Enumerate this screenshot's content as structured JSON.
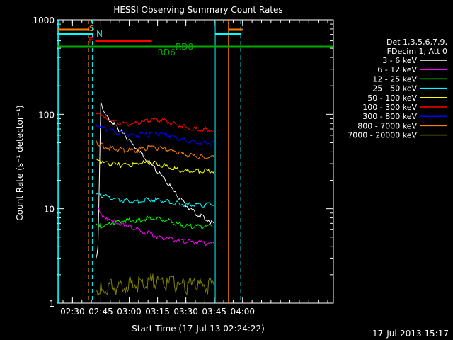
{
  "chart_data": {
    "type": "line",
    "title": "HESSI Observing Summary Count Rates",
    "xlabel": "Start Time (17-Jul-13 02:24:22)",
    "ylabel": "Count Rate (s⁻¹ detector⁻¹)",
    "yscale": "log",
    "xlim_min": [
      22,
      168
    ],
    "ylim": [
      1,
      1000
    ],
    "xticks": [
      {
        "min": 30,
        "label": "02:30"
      },
      {
        "min": 45,
        "label": "02:45"
      },
      {
        "min": 60,
        "label": "03:00"
      },
      {
        "min": 75,
        "label": "03:15"
      },
      {
        "min": 90,
        "label": "03:30"
      },
      {
        "min": 105,
        "label": "03:45"
      },
      {
        "min": 120,
        "label": "04:00"
      }
    ],
    "yticks": [
      {
        "value": 1,
        "label": "1"
      },
      {
        "value": 10,
        "label": "10"
      },
      {
        "value": 100,
        "label": "100"
      },
      {
        "value": 1000,
        "label": "1000"
      }
    ],
    "legend_header": [
      "Det 1,3,5,6,7,9,",
      "FDecim 1, Att 0"
    ],
    "series": [
      {
        "name": "3 - 6 keV",
        "color": "#ffffff",
        "x": [
          42.5,
          43.5,
          45,
          48,
          52,
          56,
          60,
          64,
          70,
          75,
          80,
          85,
          90,
          95,
          100,
          105
        ],
        "y": [
          3,
          4,
          130,
          95,
          78,
          65,
          52,
          42,
          32,
          25,
          19,
          14,
          11,
          9,
          8,
          7
        ]
      },
      {
        "name": "6 - 12 keV",
        "color": "#ff00ff",
        "x": [
          43.5,
          45,
          48,
          52,
          56,
          60,
          64,
          70,
          75,
          80,
          85,
          90,
          95,
          100,
          105
        ],
        "y": [
          11,
          9,
          8,
          7.5,
          7,
          6.5,
          6,
          5.5,
          5,
          4.8,
          4.6,
          4.5,
          4.4,
          4.3,
          4.2
        ]
      },
      {
        "name": "12 - 25 keV",
        "color": "#00ff00",
        "x": [
          42.5,
          45,
          50,
          55,
          60,
          65,
          70,
          75,
          80,
          85,
          90,
          95,
          100,
          105
        ],
        "y": [
          7,
          6.5,
          7,
          7.5,
          7.5,
          7.5,
          8,
          8,
          7.5,
          7,
          6.5,
          6.5,
          6.5,
          6.5
        ]
      },
      {
        "name": "25 - 50 keV",
        "color": "#00ffff",
        "x": [
          42.5,
          45,
          50,
          55,
          60,
          65,
          70,
          75,
          80,
          85,
          90,
          95,
          100,
          105
        ],
        "y": [
          15,
          14,
          13,
          12.5,
          12,
          12,
          12.5,
          12.5,
          12,
          11.5,
          11,
          11,
          11,
          11
        ]
      },
      {
        "name": "50 - 100 keV",
        "color": "#ffff00",
        "x": [
          42.5,
          45,
          50,
          55,
          60,
          65,
          70,
          75,
          80,
          85,
          90,
          95,
          100,
          105
        ],
        "y": [
          33,
          31,
          30,
          29,
          29,
          30,
          31,
          30,
          28,
          26,
          25,
          25,
          25,
          25
        ]
      },
      {
        "name": "100 - 300 keV",
        "color": "#ff0000",
        "x": [
          42.5,
          45,
          50,
          55,
          60,
          65,
          70,
          75,
          80,
          85,
          90,
          95,
          100,
          105
        ],
        "y": [
          100,
          95,
          85,
          80,
          78,
          80,
          86,
          88,
          84,
          78,
          73,
          70,
          69,
          68
        ]
      },
      {
        "name": "300 - 800 keV",
        "color": "#0000ff",
        "x": [
          42.5,
          45,
          50,
          55,
          60,
          65,
          70,
          75,
          80,
          85,
          90,
          95,
          100,
          105
        ],
        "y": [
          75,
          72,
          68,
          63,
          60,
          60,
          62,
          62,
          60,
          56,
          53,
          51,
          50,
          49
        ]
      },
      {
        "name": "800 - 7000 keV",
        "color": "#ff8000",
        "x": [
          42.5,
          45,
          50,
          55,
          60,
          65,
          70,
          75,
          80,
          85,
          90,
          95,
          100,
          105
        ],
        "y": [
          50,
          47,
          44,
          42,
          41,
          42,
          44,
          44,
          42,
          39,
          37,
          36,
          35,
          35
        ]
      },
      {
        "name": "7000 - 20000 keV",
        "color": "#808000",
        "x": [
          42.5,
          45,
          50,
          55,
          60,
          65,
          70,
          75,
          80,
          85,
          90,
          95,
          100,
          105
        ],
        "y": [
          1.5,
          1.4,
          1.5,
          1.5,
          1.6,
          1.6,
          1.7,
          1.7,
          1.6,
          1.6,
          1.5,
          1.5,
          1.5,
          1.5
        ]
      }
    ],
    "annotations": [
      {
        "label": "S",
        "color": "#ff8000"
      },
      {
        "label": "N",
        "color": "#00ffff"
      },
      {
        "label": "F",
        "color": "#ff0000"
      },
      {
        "label": "RD6",
        "color": "#00aa00"
      },
      {
        "label": "RD8",
        "color": "#00aa00"
      }
    ],
    "grid": false,
    "legend_position": "right"
  },
  "footer": {
    "timestamp": "17-Jul-2013 15:17"
  }
}
